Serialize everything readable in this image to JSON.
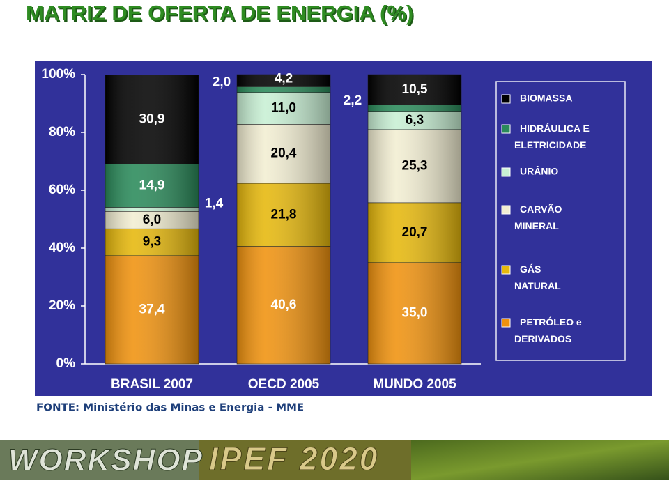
{
  "chart_data": {
    "type": "stacked_bar",
    "title": "MATRIZ DE OFERTA DE ENERGIA (%)",
    "categories": [
      "BRASIL 2007",
      "OECD 2005",
      "MUNDO 2005"
    ],
    "series": [
      {
        "name": "PETRÓLEO e DERIVADOS",
        "color": "#f0920e",
        "values": [
          37.4,
          40.6,
          35.0
        ],
        "value_labels": [
          "37,4",
          "40,6",
          "35,0"
        ]
      },
      {
        "name": "GÁS NATURAL",
        "color": "#e6b80c",
        "values": [
          9.3,
          21.8,
          20.7
        ],
        "value_labels": [
          "9,3",
          "21,8",
          "20,7"
        ]
      },
      {
        "name": "CARVÃO MINERAL",
        "color": "#f2eed2",
        "values": [
          6.0,
          20.4,
          25.3
        ],
        "value_labels": [
          "6,0",
          "20,4",
          "25,3"
        ]
      },
      {
        "name": "URÂNIO",
        "color": "#c8f0d4",
        "values": [
          1.4,
          11.0,
          6.3
        ],
        "value_labels": [
          "1,4",
          "11,0",
          "6,3"
        ]
      },
      {
        "name": "HIDRÁULICA E ELETRICIDADE",
        "color": "#2a8a5a",
        "values": [
          14.9,
          2.0,
          2.2
        ],
        "value_labels": [
          "14,9",
          "2,0",
          "2,2"
        ]
      },
      {
        "name": "BIOMASSA",
        "color": "#000000",
        "values": [
          30.9,
          4.2,
          10.5
        ],
        "value_labels": [
          "30,9",
          "4,2",
          "10,5"
        ]
      }
    ],
    "ylim": [
      0,
      100
    ],
    "yticks": [
      {
        "value": 0,
        "label": "0%"
      },
      {
        "value": 20,
        "label": "20%"
      },
      {
        "value": 40,
        "label": "40%"
      },
      {
        "value": 60,
        "label": "60%"
      },
      {
        "value": 80,
        "label": "80%"
      },
      {
        "value": 100,
        "label": "100%"
      }
    ],
    "legend": "right",
    "source": "FONTE: Ministério das Minas e Energia - MME"
  },
  "footer": {
    "left": "WORKSHOP",
    "right": "IPEF 2020"
  }
}
